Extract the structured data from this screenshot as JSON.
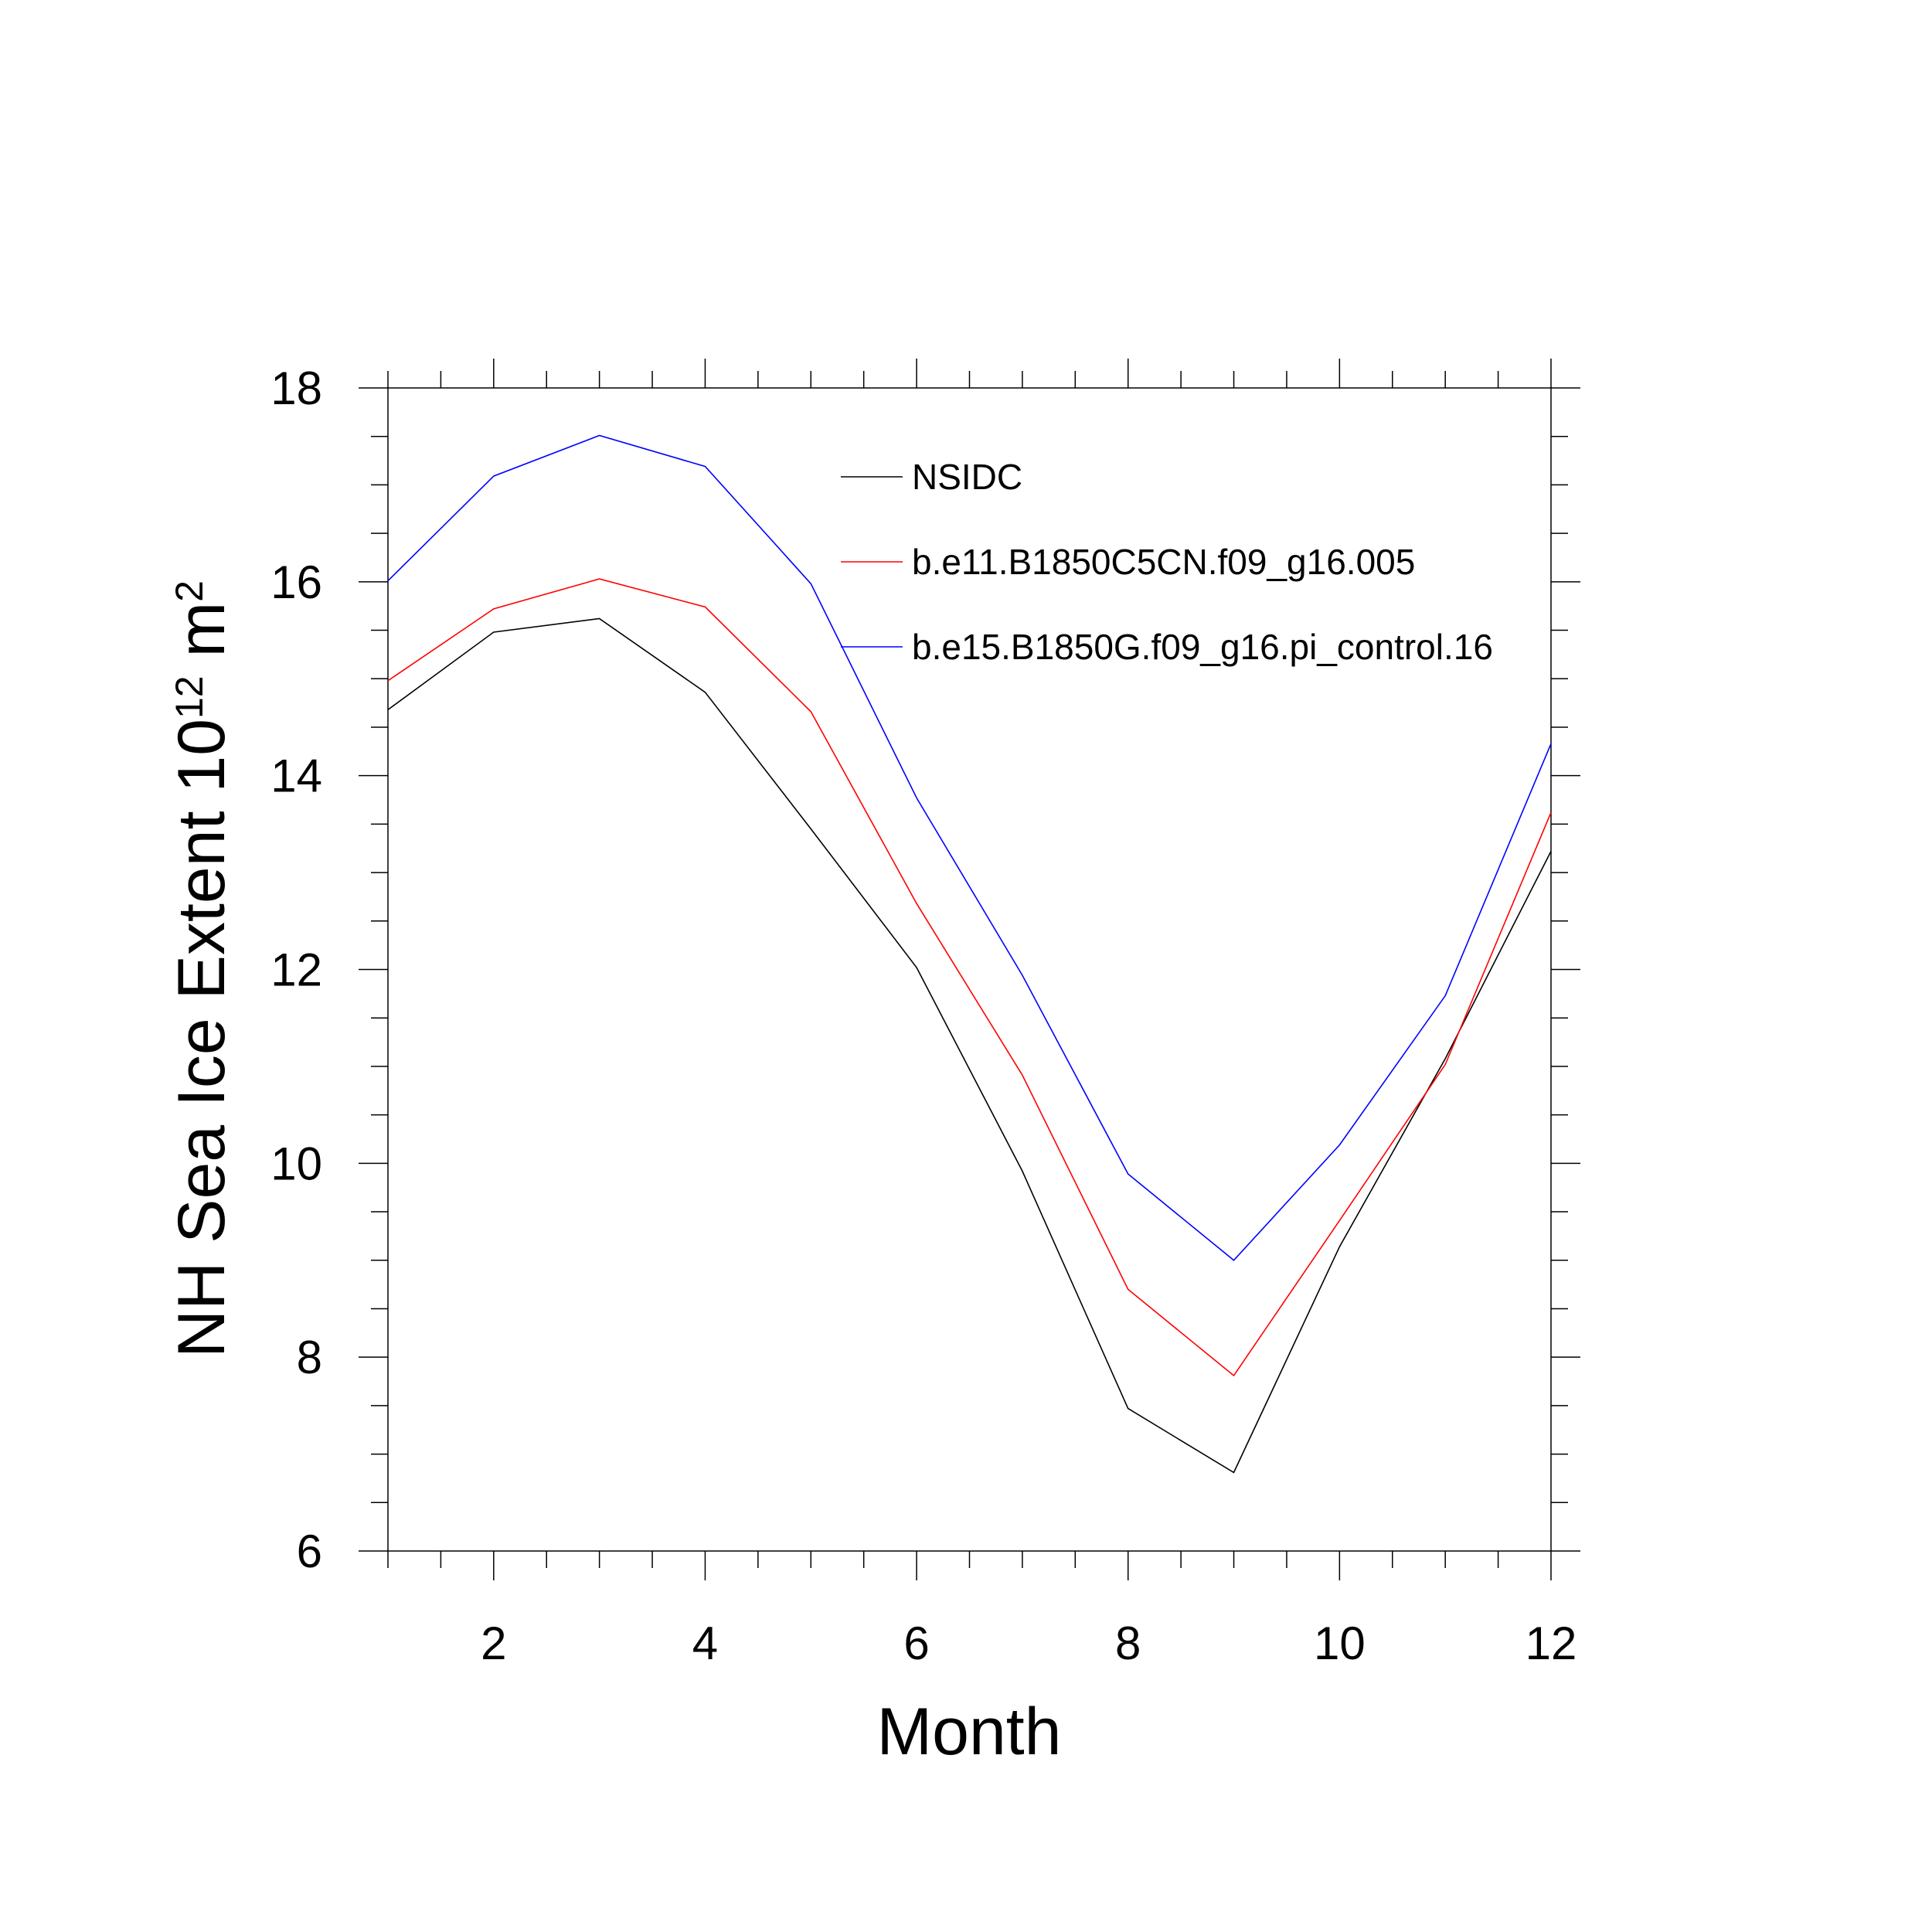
{
  "chart_data": {
    "type": "line",
    "xlabel": "Month",
    "ylabel_parts": {
      "base": "NH Sea Ice Extent 10",
      "exp1": "12",
      "mid": " m",
      "exp2": "2"
    },
    "xlim": [
      1,
      12
    ],
    "ylim": [
      6,
      18
    ],
    "x_ticks": [
      2,
      4,
      6,
      8,
      10,
      12
    ],
    "y_ticks": [
      6,
      8,
      10,
      12,
      14,
      16,
      18
    ],
    "grid": false,
    "legend_position": "top-right",
    "x": [
      1,
      2,
      3,
      4,
      5,
      6,
      7,
      8,
      9,
      10,
      11,
      12
    ],
    "series": [
      {
        "name": "NSIDC",
        "color": "#000000",
        "values": [
          14.68,
          15.48,
          15.62,
          14.86,
          13.45,
          12.02,
          9.92,
          7.47,
          6.81,
          9.14,
          11.08,
          13.22
        ]
      },
      {
        "name": "b.e11.B1850C5CN.f09_g16.005",
        "color": "#ff0000",
        "values": [
          14.98,
          15.72,
          16.03,
          15.74,
          14.66,
          12.68,
          10.91,
          8.7,
          7.81,
          9.41,
          11.02,
          13.62
        ]
      },
      {
        "name": "b.e15.B1850G.f09_g16.pi_control.16",
        "color": "#0000ff",
        "values": [
          16.01,
          17.09,
          17.51,
          17.19,
          15.98,
          13.77,
          11.94,
          9.89,
          9.0,
          10.19,
          11.73,
          14.33
        ]
      }
    ]
  }
}
